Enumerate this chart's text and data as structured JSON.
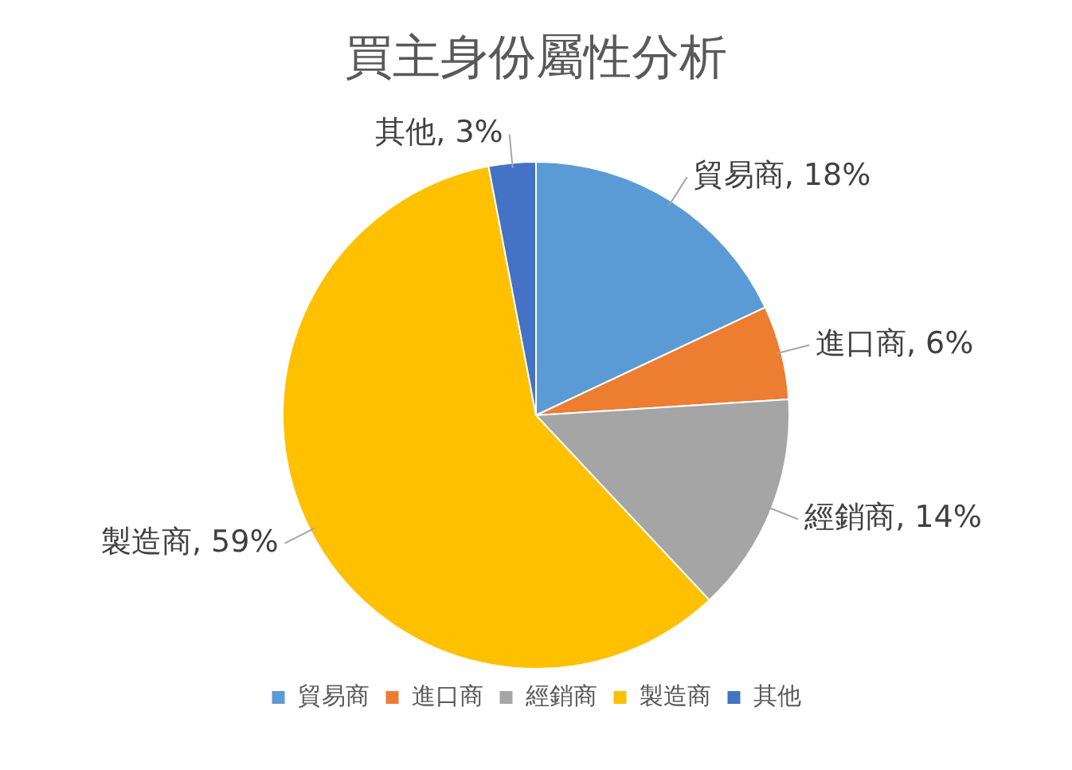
{
  "chart_data": {
    "type": "pie",
    "title": "買主身份屬性分析",
    "categories": [
      "貿易商",
      "進口商",
      "經銷商",
      "製造商",
      "其他"
    ],
    "values": [
      18,
      6,
      14,
      59,
      3
    ],
    "value_labels": [
      "貿易商, 18%",
      "進口商, 6%",
      "經銷商, 14%",
      "製造商, 59%",
      "其他, 3%"
    ],
    "colors": [
      "#5b9bd5",
      "#ed7d31",
      "#a5a5a5",
      "#ffc000",
      "#4472c4"
    ],
    "legend": "bottom"
  }
}
